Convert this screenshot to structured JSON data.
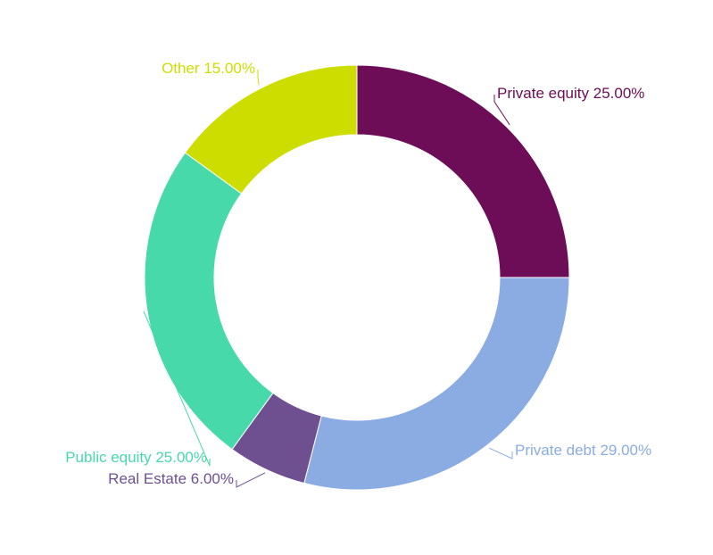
{
  "chart_data": {
    "type": "pie",
    "donut": true,
    "categories": [
      "Private equity",
      "Private debt",
      "Real Estate",
      "Public equity",
      "Other"
    ],
    "values": [
      25,
      29,
      6,
      25,
      15
    ],
    "value_labels": [
      "25.00%",
      "29.00%",
      "6.00%",
      "25.00%",
      "15.00%"
    ],
    "colors": [
      "#6d0c57",
      "#8aace3",
      "#6e5091",
      "#47d9aa",
      "#cedd00"
    ]
  }
}
